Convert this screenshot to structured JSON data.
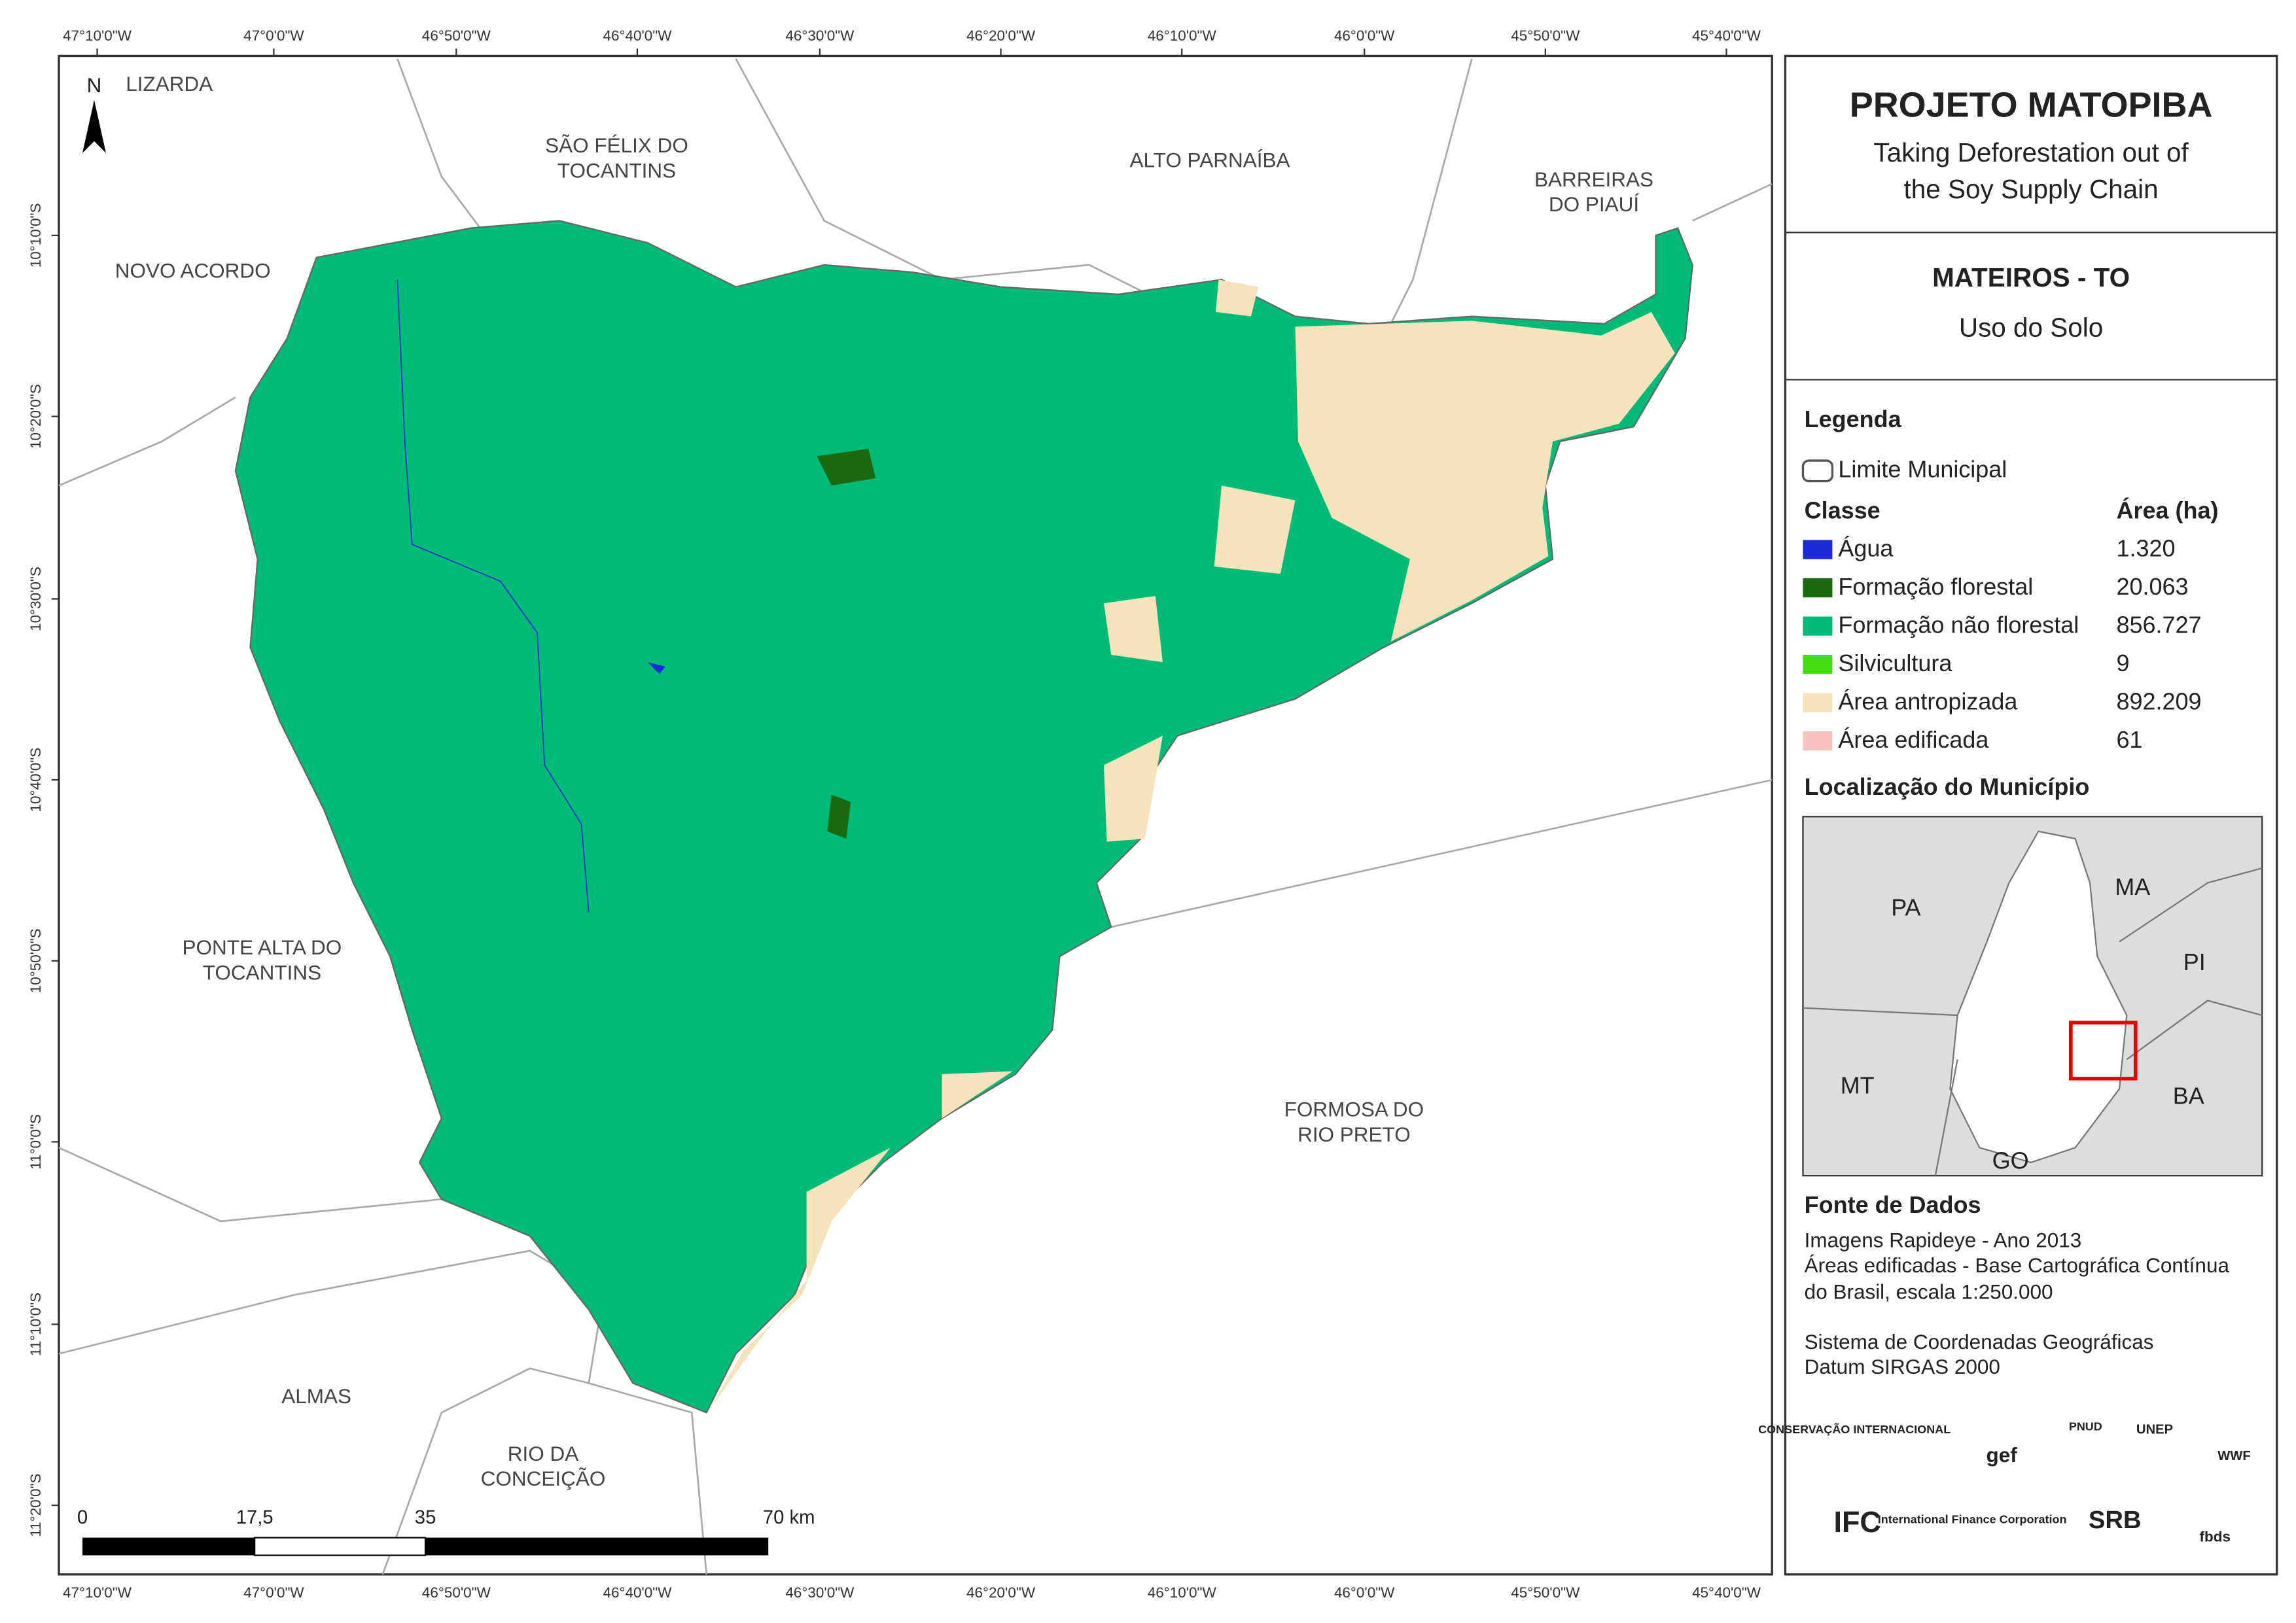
{
  "map": {
    "north": "N",
    "longitude_labels": [
      "47°10'0\"W",
      "47°0'0\"W",
      "46°50'0\"W",
      "46°40'0\"W",
      "46°30'0\"W",
      "46°20'0\"W",
      "46°10'0\"W",
      "46°0'0\"W",
      "45°50'0\"W",
      "45°40'0\"W"
    ],
    "latitude_labels": [
      "10°10'0\"S",
      "10°20'0\"S",
      "10°30'0\"S",
      "10°40'0\"S",
      "10°50'0\"S",
      "11°0'0\"S",
      "11°10'0\"S",
      "11°20'0\"S"
    ],
    "places": [
      {
        "lines": [
          "LIZARDA"
        ]
      },
      {
        "lines": [
          "SÃO FÉLIX DO",
          "TOCANTINS"
        ]
      },
      {
        "lines": [
          "ALTO PARNAÍBA"
        ]
      },
      {
        "lines": [
          "BARREIRAS",
          "DO PIAUÍ"
        ]
      },
      {
        "lines": [
          "NOVO ACORDO"
        ]
      },
      {
        "lines": [
          "PONTE ALTA DO",
          "TOCANTINS"
        ]
      },
      {
        "lines": [
          "FORMOSA DO",
          "RIO PRETO"
        ]
      },
      {
        "lines": [
          "ALMAS"
        ]
      },
      {
        "lines": [
          "RIO DA",
          "CONCEIÇÃO"
        ]
      }
    ],
    "scale_bar": [
      "0",
      "17,5",
      "35",
      "70 km"
    ]
  },
  "panel": {
    "title": "PROJETO MATOPIBA",
    "subtitle_lines": [
      "Taking Deforestation out of",
      "the Soy Supply Chain"
    ],
    "municipality": "MATEIROS - TO",
    "theme": "Uso do Solo",
    "legend": {
      "heading": "Legenda",
      "boundary": "Limite Municipal",
      "class_header": "Classe",
      "area_header": "Área (ha)",
      "rows": [
        {
          "label": "Água",
          "area": "1.320"
        },
        {
          "label": "Formação florestal",
          "area": "20.063"
        },
        {
          "label": "Formação não florestal",
          "area": "856.727"
        },
        {
          "label": "Silvicultura",
          "area": "9"
        },
        {
          "label": "Área antropizada",
          "area": "892.209"
        },
        {
          "label": "Área edificada",
          "area": "61"
        }
      ]
    },
    "location": {
      "heading": "Localização do Município",
      "states": [
        "PA",
        "MA",
        "PI",
        "MT",
        "BA",
        "GO"
      ]
    },
    "sources": {
      "heading": "Fonte de Dados",
      "lines": [
        "Imagens Rapideye - Ano 2013",
        "Áreas edificadas - Base Cartográfica Contínua",
        "do Brasil, escala 1:250.000",
        "Sistema de Coordenadas Geográficas",
        "Datum SIRGAS 2000"
      ]
    },
    "logos": [
      "CONSERVAÇÃO INTERNACIONAL",
      "gef",
      "PNUD",
      "UNEP",
      "WWF",
      "IFC",
      "International Finance Corporation",
      "SRB",
      "fbds"
    ]
  }
}
